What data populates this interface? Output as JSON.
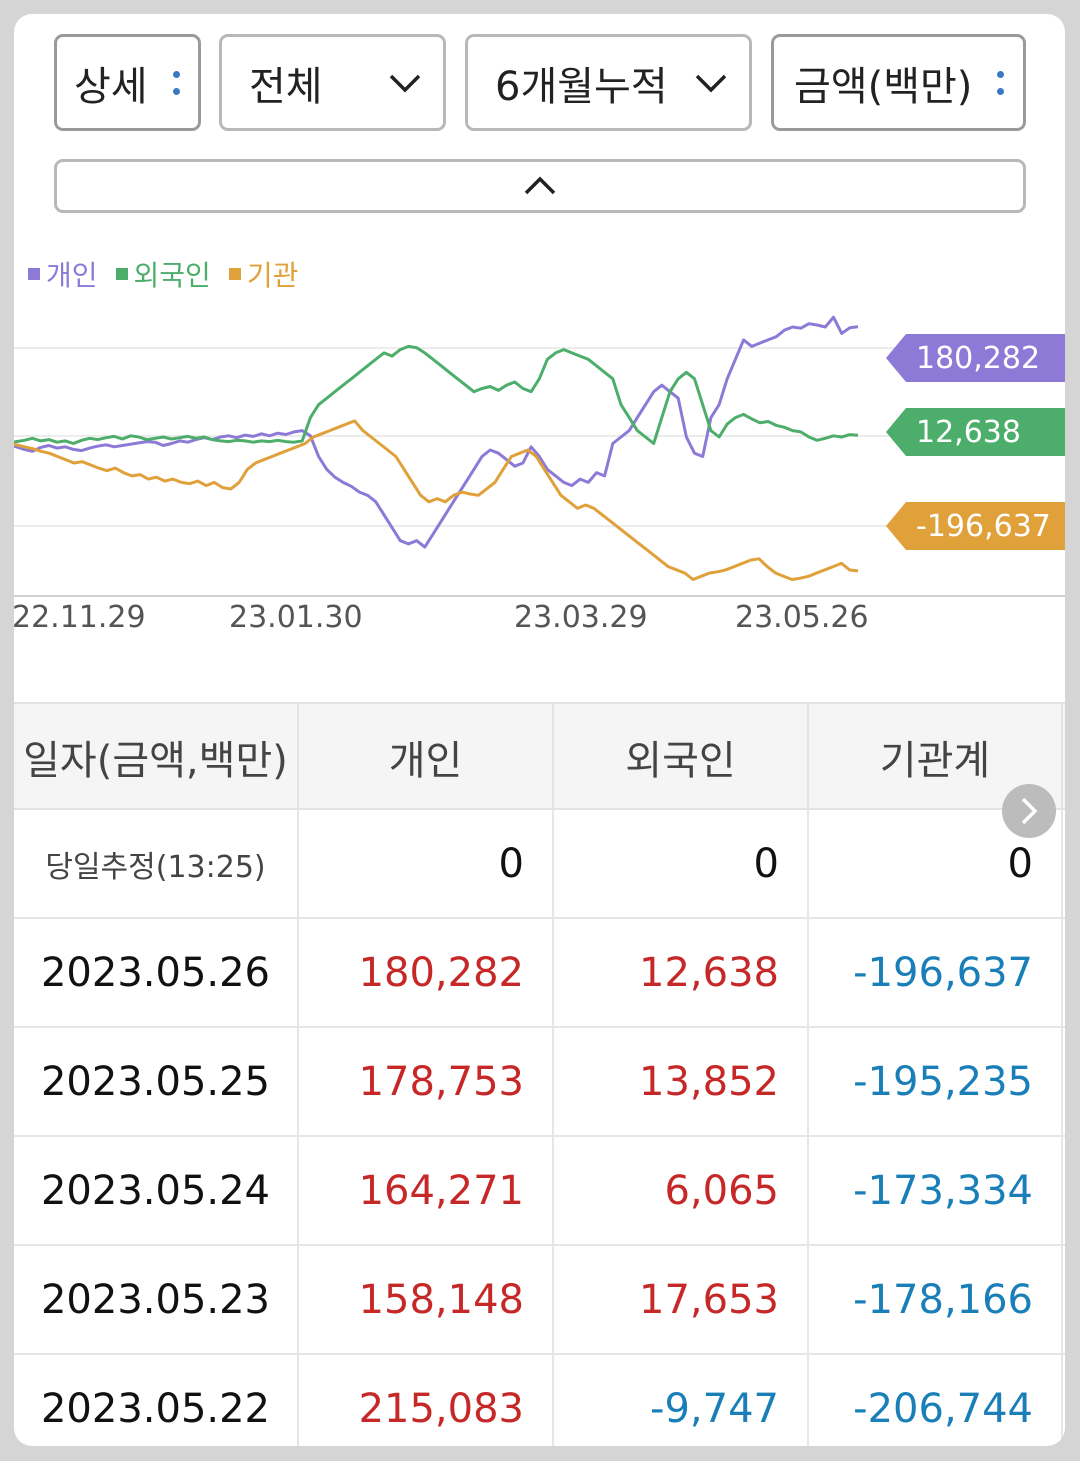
{
  "filters": {
    "mode": "상세",
    "scope": "전체",
    "period": "6개월누적",
    "unit": "금액(백만)"
  },
  "legend": {
    "individual": "개인",
    "foreign": "외국인",
    "institution": "기관"
  },
  "chart_data": {
    "type": "line",
    "x_ticks": [
      "22.11.29",
      "23.01.30",
      "23.03.29",
      "23.05.26"
    ],
    "series": [
      {
        "name": "개인",
        "color": "#8d7ad6",
        "last_value": "180,282",
        "values": [
          -2000,
          -5000,
          -9000,
          -12000,
          -6000,
          -3000,
          -7000,
          -5000,
          -9000,
          -11000,
          -7000,
          -4000,
          -2000,
          -5000,
          -3000,
          -1000,
          1000,
          3000,
          2000,
          -3000,
          0,
          4000,
          2000,
          6000,
          9000,
          6000,
          10000,
          12000,
          9000,
          13000,
          11000,
          15000,
          12000,
          16000,
          14000,
          18000,
          20000,
          12000,
          -20000,
          -40000,
          -52000,
          -60000,
          -66000,
          -75000,
          -80000,
          -90000,
          -110000,
          -130000,
          -150000,
          -155000,
          -150000,
          -160000,
          -140000,
          -120000,
          -100000,
          -80000,
          -60000,
          -40000,
          -20000,
          -10000,
          -15000,
          -25000,
          -35000,
          -30000,
          -5000,
          -20000,
          -40000,
          -50000,
          -60000,
          -65000,
          -55000,
          -60000,
          -45000,
          -50000,
          0,
          10000,
          20000,
          40000,
          60000,
          80000,
          90000,
          80000,
          70000,
          10000,
          -15000,
          -20000,
          40000,
          60000,
          100000,
          130000,
          160000,
          150000,
          155000,
          160000,
          165000,
          175000,
          180000,
          178000,
          185000,
          183000,
          180000,
          195000,
          170000,
          178753,
          180282
        ]
      },
      {
        "name": "외국인",
        "color": "#4cae6a",
        "last_value": "12,638",
        "values": [
          0,
          3000,
          5000,
          8000,
          4000,
          6000,
          2000,
          4000,
          0,
          5000,
          8000,
          6000,
          9000,
          11000,
          7000,
          12000,
          10000,
          6000,
          8000,
          10000,
          7000,
          9000,
          11000,
          8000,
          10000,
          6000,
          4000,
          3000,
          5000,
          4000,
          2000,
          4000,
          3000,
          5000,
          3000,
          2000,
          4000,
          40000,
          60000,
          70000,
          80000,
          90000,
          100000,
          110000,
          120000,
          130000,
          140000,
          135000,
          145000,
          150000,
          148000,
          140000,
          130000,
          120000,
          110000,
          100000,
          90000,
          80000,
          85000,
          88000,
          82000,
          90000,
          95000,
          85000,
          80000,
          100000,
          130000,
          140000,
          145000,
          140000,
          135000,
          130000,
          120000,
          110000,
          100000,
          60000,
          40000,
          20000,
          10000,
          0,
          40000,
          80000,
          100000,
          110000,
          100000,
          60000,
          20000,
          10000,
          30000,
          40000,
          45000,
          38000,
          32000,
          34000,
          28000,
          25000,
          20000,
          18000,
          10000,
          5000,
          8000,
          12000,
          10000,
          13852,
          12638
        ]
      },
      {
        "name": "기관",
        "color": "#e0a03a",
        "last_value": "-196,637",
        "values": [
          0,
          -2000,
          -5000,
          -8000,
          -12000,
          -15000,
          -20000,
          -25000,
          -30000,
          -28000,
          -33000,
          -38000,
          -42000,
          -38000,
          -45000,
          -50000,
          -48000,
          -55000,
          -52000,
          -58000,
          -55000,
          -60000,
          -62000,
          -58000,
          -65000,
          -60000,
          -68000,
          -70000,
          -60000,
          -40000,
          -30000,
          -25000,
          -20000,
          -15000,
          -10000,
          -5000,
          0,
          10000,
          15000,
          20000,
          25000,
          30000,
          35000,
          20000,
          10000,
          0,
          -10000,
          -20000,
          -40000,
          -60000,
          -80000,
          -90000,
          -85000,
          -90000,
          -80000,
          -75000,
          -78000,
          -80000,
          -70000,
          -60000,
          -40000,
          -20000,
          -15000,
          -10000,
          -20000,
          -40000,
          -60000,
          -80000,
          -90000,
          -100000,
          -95000,
          -100000,
          -110000,
          -120000,
          -130000,
          -140000,
          -150000,
          -160000,
          -170000,
          -180000,
          -190000,
          -195000,
          -200000,
          -210000,
          -205000,
          -200000,
          -198000,
          -195000,
          -190000,
          -185000,
          -180000,
          -178000,
          -190000,
          -200000,
          -205000,
          -210000,
          -208000,
          -205000,
          -200000,
          -195000,
          -190000,
          -185000,
          -195235,
          -196637
        ]
      }
    ]
  },
  "table": {
    "headers": [
      "일자(금액,백만)",
      "개인",
      "외국인",
      "기관계"
    ],
    "rows": [
      {
        "date": "당일추정(13:25)",
        "individual": "0",
        "foreign": "0",
        "institution": "0"
      },
      {
        "date": "2023.05.26",
        "individual": "180,282",
        "foreign": "12,638",
        "institution": "-196,637"
      },
      {
        "date": "2023.05.25",
        "individual": "178,753",
        "foreign": "13,852",
        "institution": "-195,235"
      },
      {
        "date": "2023.05.24",
        "individual": "164,271",
        "foreign": "6,065",
        "institution": "-173,334"
      },
      {
        "date": "2023.05.23",
        "individual": "158,148",
        "foreign": "17,653",
        "institution": "-178,166"
      },
      {
        "date": "2023.05.22",
        "individual": "215,083",
        "foreign": "-9,747",
        "institution": "-206,744"
      }
    ]
  }
}
